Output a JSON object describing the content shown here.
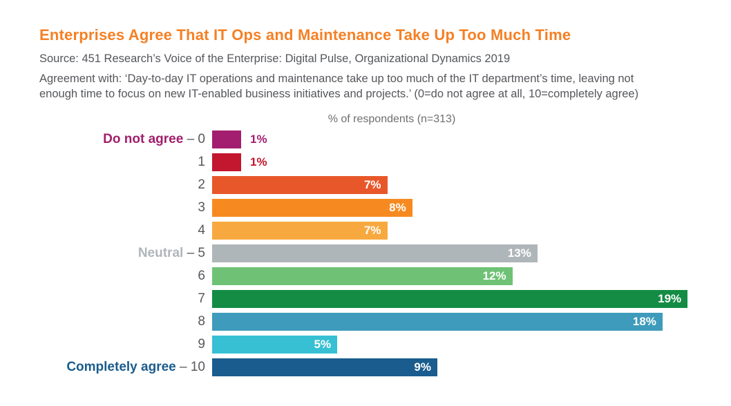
{
  "header": {
    "title": "Enterprises Agree That IT Ops and Maintenance Take Up Too Much Time",
    "title_color": "#f58025",
    "source": "Source: 451 Research’s Voice of the Enterprise: Digital Pulse, Organizational Dynamics 2019",
    "description": "Agreement with: ‘Day-to-day IT operations and maintenance take up too much of the IT department’s time, leaving not enough time to focus on new IT-enabled business initiatives and projects.’ (0=do not agree at all, 10=completely agree)",
    "text_color": "#54565a"
  },
  "chart_data": {
    "type": "bar",
    "orientation": "horizontal",
    "title": "% of respondents (n=313)",
    "categories": [
      "0",
      "1",
      "2",
      "3",
      "4",
      "5",
      "6",
      "7",
      "8",
      "9",
      "10"
    ],
    "values": [
      1,
      1,
      7,
      8,
      7,
      13,
      12,
      19,
      18,
      5,
      9
    ],
    "value_labels": [
      "1%",
      "1%",
      "7%",
      "8%",
      "7%",
      "13%",
      "12%",
      "19%",
      "18%",
      "5%",
      "9%"
    ],
    "bar_colors": [
      "#a31e6f",
      "#c3162f",
      "#e8572a",
      "#f68a20",
      "#f7a940",
      "#afb6b9",
      "#6fc275",
      "#148c44",
      "#3e9bbb",
      "#37c0d3",
      "#1a5c8d"
    ],
    "axis_annotations": [
      {
        "category": "0",
        "text": "Do not agree",
        "color": "#a01e6b"
      },
      {
        "category": "5",
        "text": "Neutral",
        "color": "#afb6b9"
      },
      {
        "category": "10",
        "text": "Completely agree",
        "color": "#1a5c8d"
      }
    ],
    "label_inside_threshold": 5,
    "xlim": [
      0,
      19.5
    ],
    "grid": false,
    "legend": false,
    "tick_color": "#55575b",
    "chart_title_color": "#6d6e71"
  }
}
